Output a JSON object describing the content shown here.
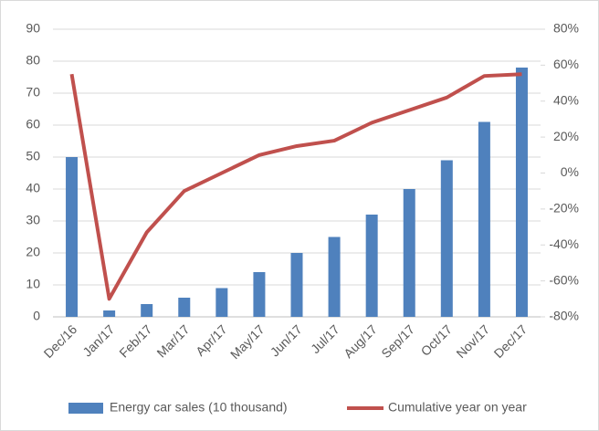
{
  "chart_data": {
    "type": "bar_line",
    "categories": [
      "Dec/16",
      "Jan/17",
      "Feb/17",
      "Mar/17",
      "Apr/17",
      "May/17",
      "Jun/17",
      "Jul/17",
      "Aug/17",
      "Sep/17",
      "Oct/17",
      "Nov/17",
      "Dec/17"
    ],
    "series": [
      {
        "name": "Energy car sales (10 thousand)",
        "color": "#4f81bd",
        "type": "bar",
        "values": [
          50,
          2,
          4,
          6,
          9,
          14,
          20,
          25,
          32,
          40,
          49,
          61,
          78
        ]
      },
      {
        "name": "Cumulative year on year",
        "color": "#c0504d",
        "type": "line",
        "axis": "y2",
        "values": [
          55,
          -70,
          -33,
          -10,
          0,
          10,
          15,
          18,
          28,
          35,
          42,
          54,
          55
        ]
      }
    ],
    "ylim": [
      0,
      90
    ],
    "yticks": [
      0,
      10,
      20,
      30,
      40,
      50,
      60,
      70,
      80,
      90
    ],
    "y2lim": [
      -80,
      80
    ],
    "y2ticks": [
      {
        "value": -80,
        "label": "-80%"
      },
      {
        "value": -60,
        "label": "-60%"
      },
      {
        "value": -40,
        "label": "-40%"
      },
      {
        "value": -20,
        "label": "-20%"
      },
      {
        "value": 0,
        "label": "0%"
      },
      {
        "value": 20,
        "label": "20%"
      },
      {
        "value": 40,
        "label": "40%"
      },
      {
        "value": 60,
        "label": "60%"
      },
      {
        "value": 80,
        "label": "80%"
      }
    ],
    "grid": true,
    "legend": "bottom"
  }
}
